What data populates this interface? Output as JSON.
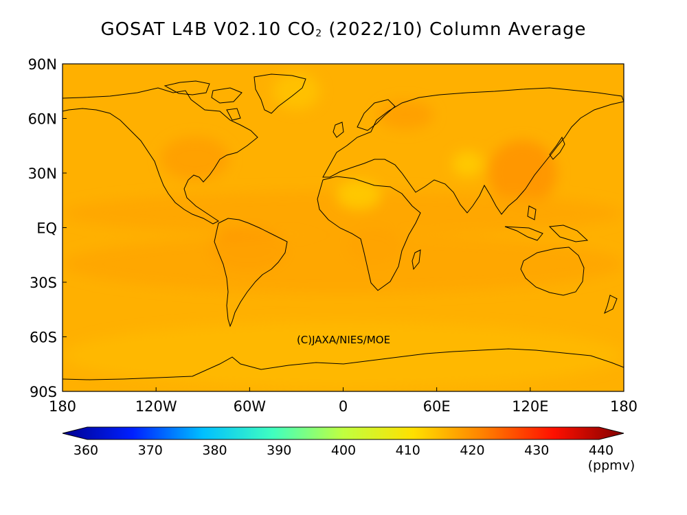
{
  "title": {
    "prefix": "GOSAT L4B V02.10 CO",
    "subscript": "2",
    "suffix": " (2022/10) Column Average"
  },
  "credit": "(C)JAXA/NIES/MOE",
  "chart_data": {
    "type": "heatmap",
    "title": "GOSAT L4B V02.10 CO2 (2022/10) Column Average",
    "variable": "XCO2 column average",
    "period": "2022/10",
    "lon_range": [
      -180,
      180
    ],
    "lat_range": [
      -90,
      90
    ],
    "x_ticks": [
      {
        "value": -180,
        "label": "180"
      },
      {
        "value": -120,
        "label": "120W"
      },
      {
        "value": -60,
        "label": "60W"
      },
      {
        "value": 0,
        "label": "0"
      },
      {
        "value": 60,
        "label": "60E"
      },
      {
        "value": 120,
        "label": "120E"
      },
      {
        "value": 180,
        "label": "180"
      }
    ],
    "y_ticks": [
      {
        "value": 90,
        "label": "90N"
      },
      {
        "value": 60,
        "label": "60N"
      },
      {
        "value": 30,
        "label": "30N"
      },
      {
        "value": 0,
        "label": "EQ"
      },
      {
        "value": -30,
        "label": "30S"
      },
      {
        "value": -60,
        "label": "60S"
      },
      {
        "value": -90,
        "label": "90S"
      }
    ],
    "background_value": 415,
    "regions": [
      {
        "lon": -61,
        "lat": -12,
        "rx": 25,
        "ry": 12,
        "value": 419
      },
      {
        "lon": 20,
        "lat": -10,
        "rx": 18,
        "ry": 10,
        "value": 418
      },
      {
        "lon": 115,
        "lat": 30,
        "rx": 22,
        "ry": 18,
        "value": 418
      },
      {
        "lon": 40,
        "lat": 62,
        "rx": 18,
        "ry": 8,
        "value": 417
      },
      {
        "lon": -95,
        "lat": 38,
        "rx": 22,
        "ry": 12,
        "value": 417
      },
      {
        "lon": 0,
        "lat": -20,
        "rx": 180,
        "ry": 16,
        "value": 416
      },
      {
        "lon": 0,
        "lat": 8,
        "rx": 180,
        "ry": 12,
        "value": 416
      },
      {
        "lon": 10,
        "lat": 18,
        "rx": 14,
        "ry": 8,
        "value": 412
      },
      {
        "lon": 80,
        "lat": 35,
        "rx": 10,
        "ry": 7,
        "value": 412
      },
      {
        "lon": -30,
        "lat": 75,
        "rx": 15,
        "ry": 10,
        "value": 413
      },
      {
        "lon": 0,
        "lat": -70,
        "rx": 180,
        "ry": 18,
        "value": 414
      }
    ],
    "colorbar": {
      "min": 360,
      "max": 440,
      "ticks": [
        360,
        370,
        380,
        390,
        400,
        410,
        420,
        430,
        440
      ],
      "unit": "(ppmv)",
      "extend": "both",
      "colors": [
        "#00008f",
        "#0020ff",
        "#00bfff",
        "#40ffbf",
        "#c0ff40",
        "#ffe000",
        "#ff8000",
        "#ff1000",
        "#800000"
      ]
    }
  }
}
